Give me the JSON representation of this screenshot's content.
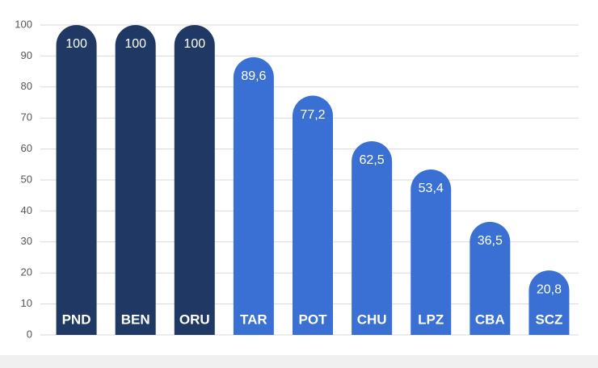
{
  "chart_data": {
    "type": "bar",
    "categories": [
      "PND",
      "BEN",
      "ORU",
      "TAR",
      "POT",
      "CHU",
      "LPZ",
      "CBA",
      "SCZ"
    ],
    "values": [
      100,
      100,
      100,
      89.6,
      77.2,
      62.5,
      53.4,
      36.5,
      20.8
    ],
    "value_labels": [
      "100",
      "100",
      "100",
      "89,6",
      "77,2",
      "62,5",
      "53,4",
      "36,5",
      "20,8"
    ],
    "colors": [
      "#1f3864",
      "#1f3864",
      "#1f3864",
      "#3a70d4",
      "#3a70d4",
      "#3a70d4",
      "#3a70d4",
      "#3a70d4",
      "#3a70d4"
    ],
    "ylim": [
      0,
      100
    ],
    "yticks": [
      0,
      10,
      20,
      30,
      40,
      50,
      60,
      70,
      80,
      90,
      100
    ],
    "grid": true
  }
}
